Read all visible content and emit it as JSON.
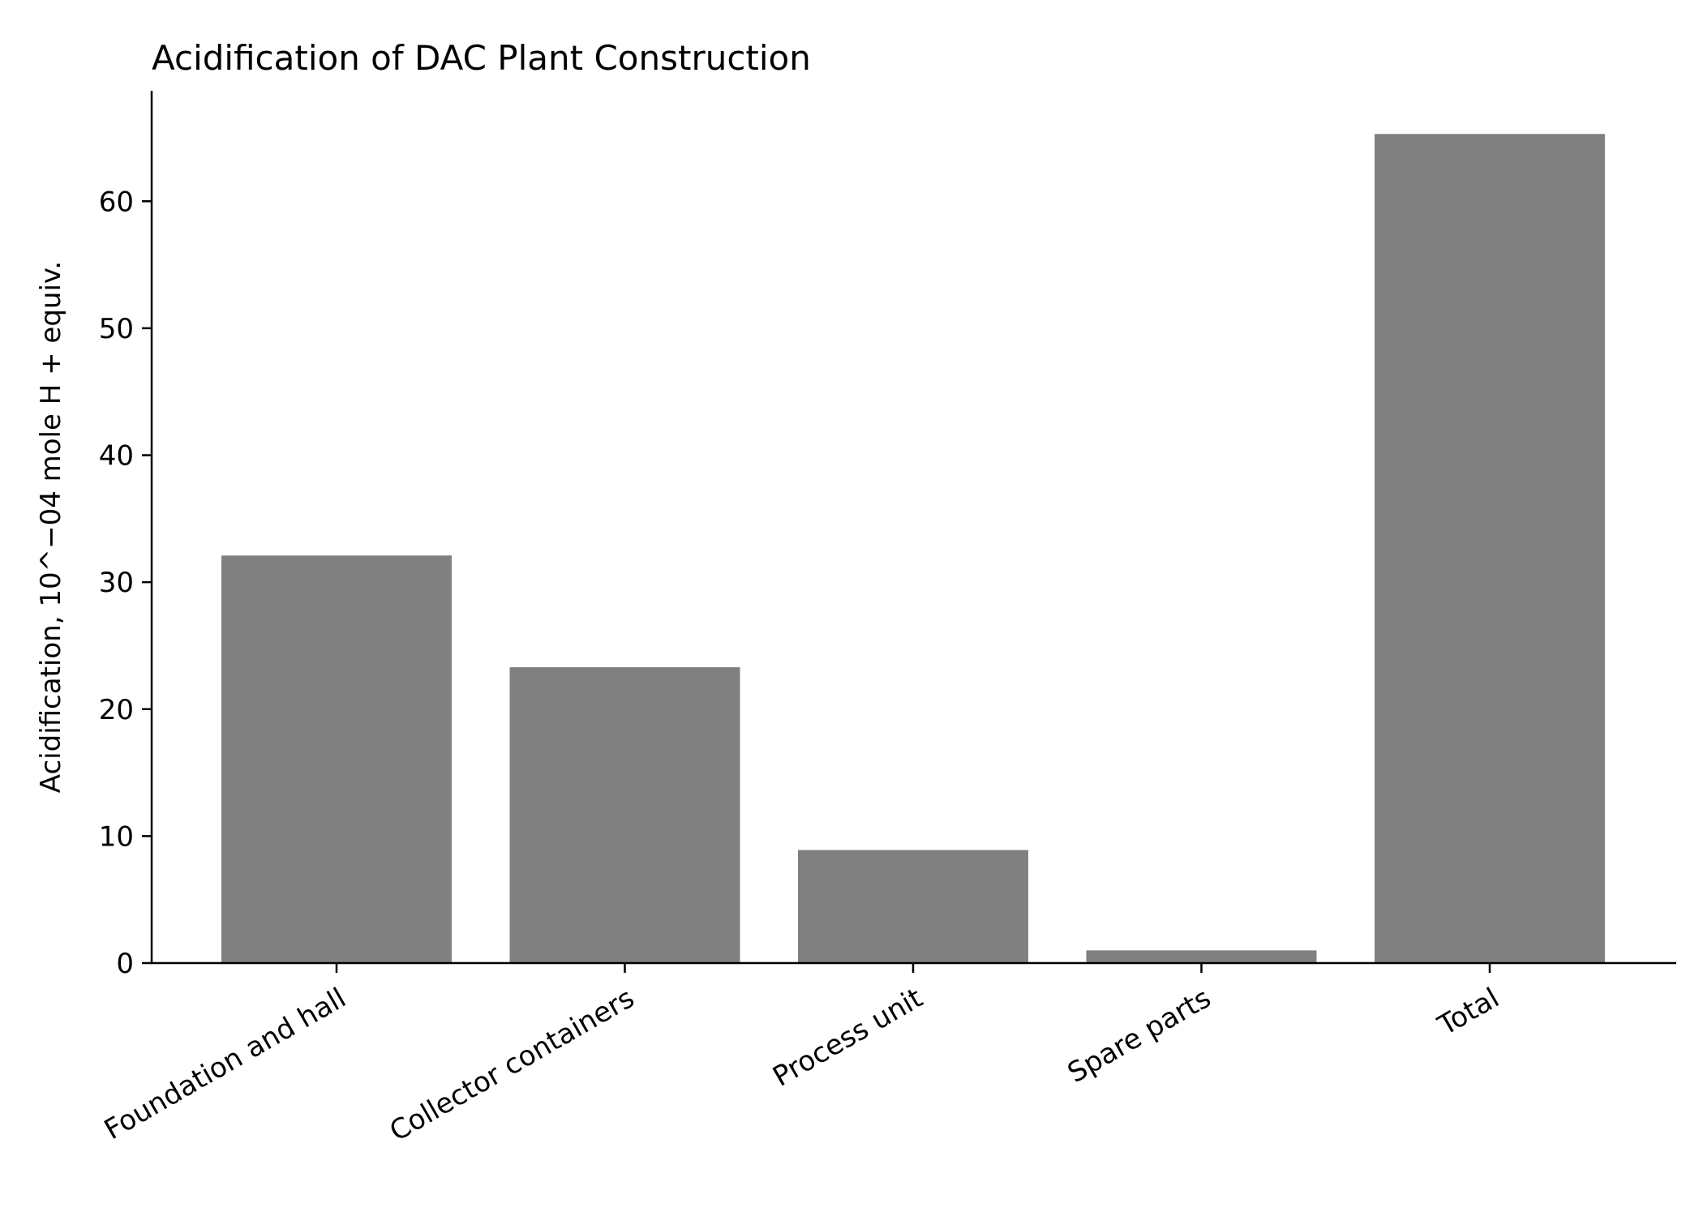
{
  "chart_data": {
    "type": "bar",
    "title": "Acidification of DAC Plant Construction",
    "xlabel": "",
    "ylabel": "Acidification, 10^−04 mole H + equiv.",
    "categories": [
      "Foundation and hall",
      "Collector containers",
      "Process unit",
      "Spare parts",
      "Total"
    ],
    "values": [
      32.1,
      23.3,
      8.9,
      1.0,
      65.3
    ],
    "yticks": [
      0,
      10,
      20,
      30,
      40,
      50,
      60
    ],
    "ylim": [
      0,
      68.7
    ],
    "grid": false,
    "bar_color": "#808080",
    "axis_color": "#000000"
  }
}
